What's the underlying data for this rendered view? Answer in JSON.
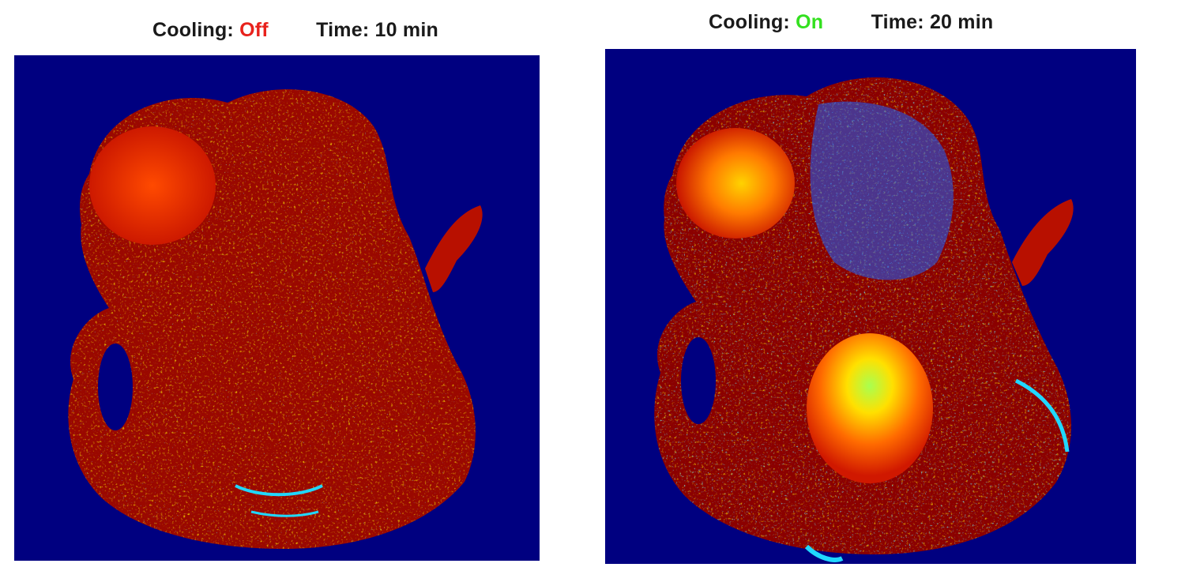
{
  "panels": [
    {
      "cooling_label": "Cooling:",
      "cooling_state": "Off",
      "cooling_state_color": "#e8221c",
      "time_label": "Time:",
      "time_value": "10 min"
    },
    {
      "cooling_label": "Cooling:",
      "cooling_state": "On",
      "cooling_state_color": "#33e01f",
      "time_label": "Time:",
      "time_value": "20 min"
    }
  ],
  "colors": {
    "background": "#000080",
    "dark_red": "#8b0000",
    "red": "#d81800",
    "orange": "#ff6a00",
    "yellow": "#ffe600",
    "cyan": "#20d8ff",
    "blue": "#1040ff"
  }
}
